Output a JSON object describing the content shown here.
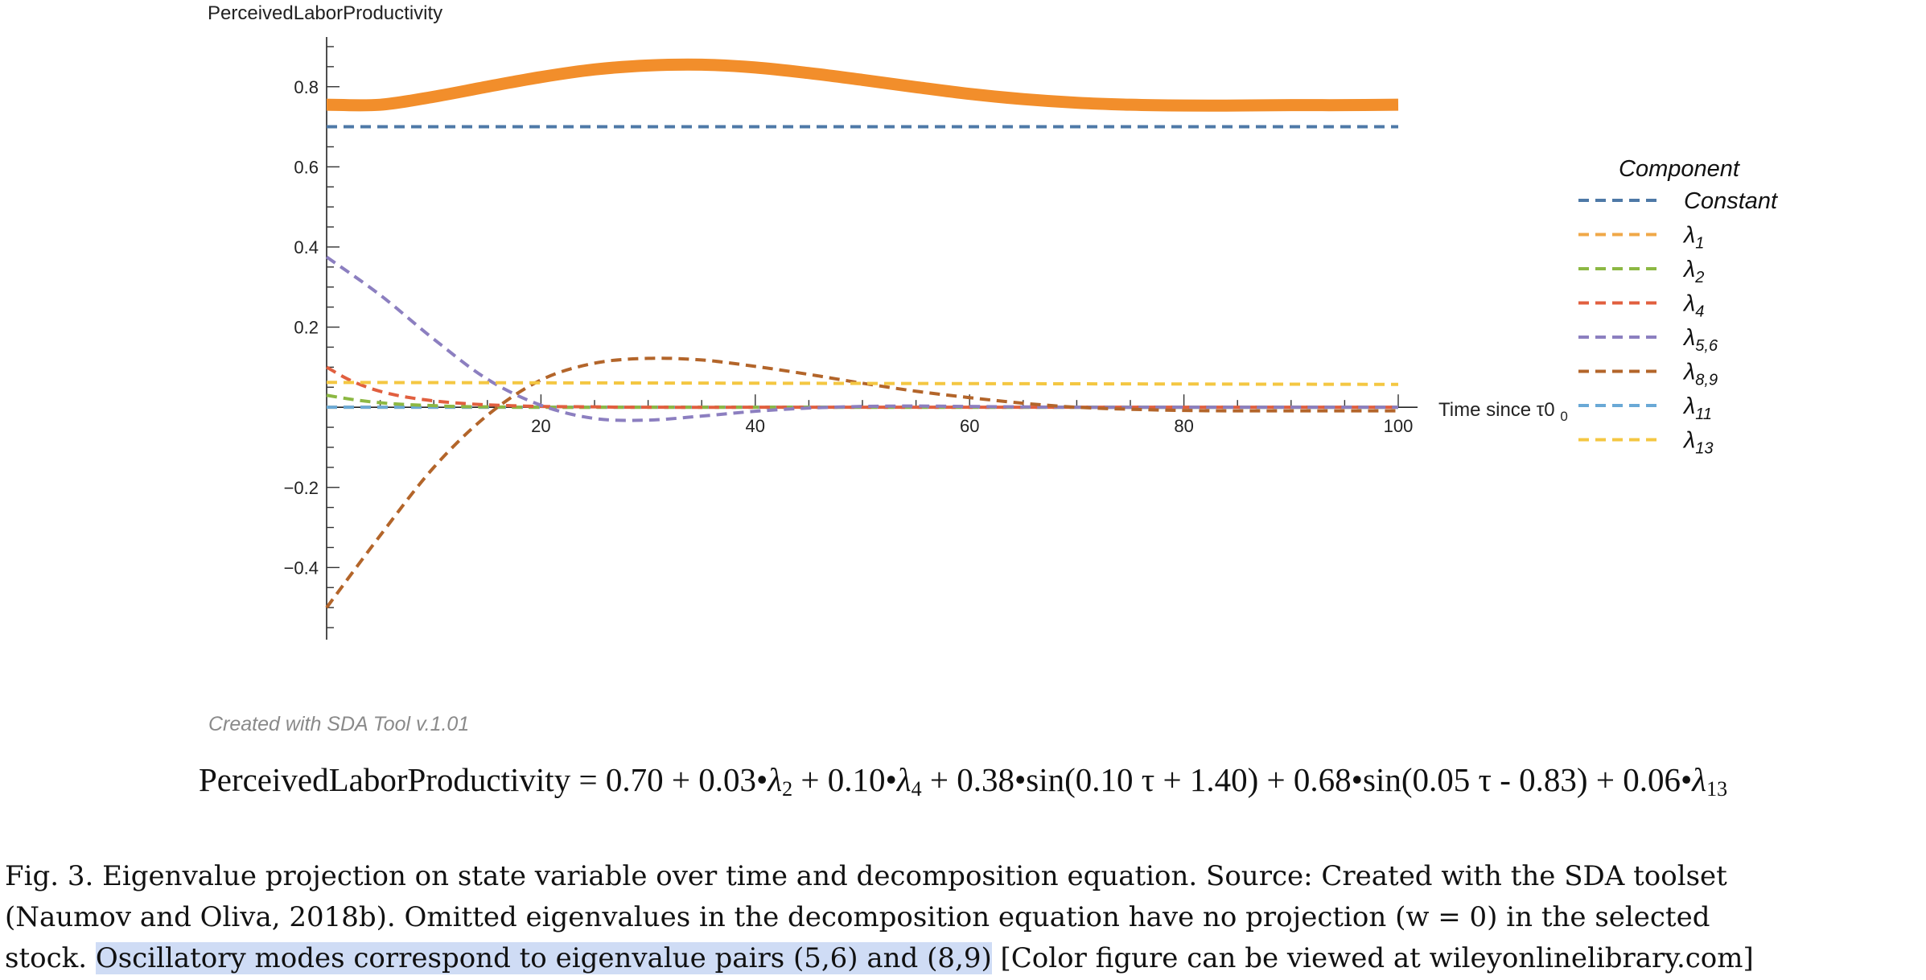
{
  "chart_data": {
    "type": "line",
    "ylabel": "PerceivedLaborProductivity",
    "xlabel": "Time since τ0",
    "xlim": [
      0,
      100
    ],
    "ylim": [
      -0.58,
      0.92
    ],
    "xticks": [
      20,
      40,
      60,
      80,
      100
    ],
    "yticks": [
      -0.4,
      -0.2,
      0.2,
      0.4,
      0.6,
      0.8
    ],
    "ytick_labels": [
      "−0.4",
      "−0.2",
      "0.2",
      "0.4",
      "0.6",
      "0.8"
    ],
    "grid": false,
    "legend_title": "Component",
    "legend_position": "right",
    "total": {
      "x": [
        0,
        5,
        10,
        15,
        20,
        25,
        30,
        35,
        40,
        45,
        50,
        55,
        60,
        65,
        70,
        75,
        80,
        85,
        90,
        95,
        100
      ],
      "y": [
        0.755,
        0.755,
        0.775,
        0.8,
        0.824,
        0.843,
        0.853,
        0.855,
        0.848,
        0.834,
        0.817,
        0.799,
        0.782,
        0.769,
        0.76,
        0.755,
        0.753,
        0.753,
        0.754,
        0.754,
        0.755
      ],
      "color": "#f28e2b"
    },
    "series": [
      {
        "name": "Constant",
        "label_main": "Constant",
        "label_sub": "",
        "color": "#4e79a7",
        "x": [
          0,
          100
        ],
        "y": [
          0.7,
          0.7
        ]
      },
      {
        "name": "λ1",
        "label_main": "λ",
        "label_sub": "1",
        "color": "#f0a848",
        "x": [
          0,
          100
        ],
        "y": [
          0.0,
          0.0
        ]
      },
      {
        "name": "λ2",
        "label_main": "λ",
        "label_sub": "2",
        "color": "#8cb843",
        "x": [
          0,
          2,
          4,
          6,
          8,
          10,
          12,
          15,
          20,
          30,
          50,
          100
        ],
        "y": [
          0.03,
          0.021,
          0.014,
          0.009,
          0.006,
          0.004,
          0.002,
          0.001,
          0.0,
          0.0,
          0.0,
          0.0
        ]
      },
      {
        "name": "λ4",
        "label_main": "λ",
        "label_sub": "4",
        "color": "#e15f3f",
        "x": [
          0,
          2,
          4,
          6,
          8,
          10,
          12,
          15,
          20,
          25,
          30,
          50,
          100
        ],
        "y": [
          0.1,
          0.07,
          0.048,
          0.033,
          0.023,
          0.016,
          0.011,
          0.006,
          0.002,
          0.001,
          0.0,
          0.0,
          0.0
        ]
      },
      {
        "name": "λ5,6",
        "label_main": "λ",
        "label_sub": "5,6",
        "color": "#8c7fc0",
        "x": [
          0,
          5,
          10,
          15,
          20,
          25,
          30,
          35,
          40,
          45,
          50,
          55,
          60,
          70,
          80,
          100
        ],
        "y": [
          0.375,
          0.28,
          0.17,
          0.07,
          0.005,
          -0.028,
          -0.032,
          -0.022,
          -0.01,
          -0.002,
          0.002,
          0.003,
          0.002,
          0.0,
          0.0,
          0.0
        ]
      },
      {
        "name": "λ8,9",
        "label_main": "λ",
        "label_sub": "8,9",
        "color": "#b3652a",
        "x": [
          0,
          5,
          10,
          15,
          20,
          25,
          30,
          35,
          40,
          45,
          50,
          55,
          60,
          65,
          70,
          75,
          80,
          85,
          90,
          100
        ],
        "y": [
          -0.5,
          -0.32,
          -0.15,
          -0.02,
          0.068,
          0.11,
          0.122,
          0.118,
          0.102,
          0.082,
          0.06,
          0.04,
          0.024,
          0.01,
          0.0,
          -0.005,
          -0.008,
          -0.009,
          -0.009,
          -0.009
        ]
      },
      {
        "name": "λ11",
        "label_main": "λ",
        "label_sub": "11",
        "color": "#6aa9d6",
        "x": [
          0,
          100
        ],
        "y": [
          0.0,
          0.0
        ]
      },
      {
        "name": "λ13",
        "label_main": "λ",
        "label_sub": "13",
        "color": "#f4c742",
        "x": [
          0,
          20,
          40,
          60,
          80,
          100
        ],
        "y": [
          0.062,
          0.061,
          0.06,
          0.059,
          0.058,
          0.057
        ]
      }
    ]
  },
  "credit": "Created with SDA Tool v.1.01",
  "equation": {
    "lhs": "PerceivedLaborProductivity",
    "t1": " = 0.70 + 0.03•",
    "sub1": "2",
    "t2": " + 0.10•",
    "sub2": "4",
    "t3": " + 0.38•sin(0.10 τ + 1.40) + 0.68•sin(0.05 τ - 0.83) + 0.06•",
    "sub3": "13",
    "lambda": "λ"
  },
  "caption": {
    "line1": "Fig. 3.  Eigenvalue projection on state variable over time and decomposition equation. Source: Created with the SDA toolset",
    "line2": "(Naumov and Oliva, 2018b). Omitted eigenvalues in the decomposition equation have no projection (w = 0) in the selected",
    "line3_start": "stock. ",
    "line3_highlight": "Oscillatory modes correspond to eigenvalue pairs (5,6) and (8,9)",
    "line3_end": " [Color figure can be viewed at wileyonlinelibrary.com]"
  }
}
